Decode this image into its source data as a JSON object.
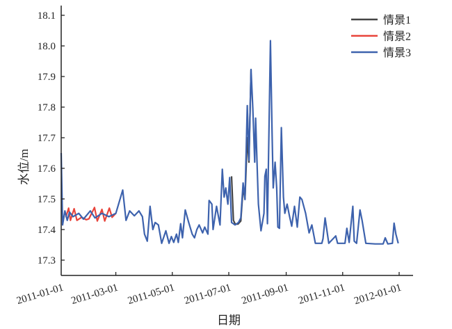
{
  "chart_data": {
    "type": "line",
    "title": "",
    "xlabel": "日期",
    "ylabel": "水位/m",
    "x_unit": "days since 2011-01-01",
    "xlim": [
      0,
      365
    ],
    "ylim": [
      17.3,
      18.1
    ],
    "yticks": [
      17.3,
      17.4,
      17.5,
      17.6,
      17.7,
      17.8,
      17.9,
      18.0,
      18.1
    ],
    "ytick_labels": [
      "17.3",
      "17.4",
      "17.5",
      "17.6",
      "17.7",
      "17.8",
      "17.9",
      "18.0",
      "18.1"
    ],
    "xticks": [
      0,
      59,
      120,
      181,
      243,
      304,
      365
    ],
    "xtick_labels": [
      "2011-01-01",
      "2011-03-01",
      "2011-05-01",
      "2011-07-01",
      "2011-09-01",
      "2011-11-01",
      "2012-01-01"
    ],
    "grid": false,
    "legend_position": "top-right",
    "series": [
      {
        "name": "情景1",
        "color": "#444444",
        "note": "differs from 情景3 only in segments listed",
        "points": [
          [
            184,
            17.574
          ],
          [
            186,
            17.43
          ],
          [
            188,
            17.418
          ],
          [
            191,
            17.418
          ],
          [
            194,
            17.428
          ],
          [
            196.5,
            17.536
          ],
          [
            198.5,
            17.5
          ],
          [
            201,
            17.7
          ],
          [
            202.75,
            17.62
          ],
          [
            205,
            17.923
          ]
        ]
      },
      {
        "name": "情景2",
        "color": "#e8453c",
        "note": "differs from 情景3 only in segments listed",
        "points": [
          [
            5,
            17.44
          ],
          [
            8,
            17.47
          ],
          [
            10,
            17.43
          ],
          [
            14,
            17.468
          ],
          [
            17,
            17.43
          ],
          [
            22,
            17.44
          ],
          [
            27,
            17.432
          ],
          [
            30,
            17.435
          ],
          [
            36,
            17.472
          ],
          [
            39,
            17.428
          ],
          [
            44,
            17.466
          ],
          [
            47,
            17.428
          ],
          [
            52,
            17.47
          ],
          [
            55,
            17.44
          ],
          [
            59,
            17.453
          ]
        ]
      },
      {
        "name": "情景3",
        "color": "#3d62ad",
        "points": [
          [
            0,
            17.65
          ],
          [
            1.5,
            17.415
          ],
          [
            4,
            17.461
          ],
          [
            6.5,
            17.43
          ],
          [
            9,
            17.457
          ],
          [
            12.75,
            17.442
          ],
          [
            19,
            17.453
          ],
          [
            24,
            17.434
          ],
          [
            31.5,
            17.461
          ],
          [
            36.5,
            17.438
          ],
          [
            44,
            17.453
          ],
          [
            51.5,
            17.442
          ],
          [
            59,
            17.453
          ],
          [
            66.5,
            17.529
          ],
          [
            70,
            17.43
          ],
          [
            74,
            17.461
          ],
          [
            79,
            17.445
          ],
          [
            84,
            17.461
          ],
          [
            87.75,
            17.442
          ],
          [
            90,
            17.385
          ],
          [
            93,
            17.362
          ],
          [
            96,
            17.476
          ],
          [
            99,
            17.4
          ],
          [
            101.5,
            17.423
          ],
          [
            105,
            17.415
          ],
          [
            108.5,
            17.355
          ],
          [
            113,
            17.396
          ],
          [
            116.5,
            17.355
          ],
          [
            119,
            17.377
          ],
          [
            121.5,
            17.358
          ],
          [
            124.5,
            17.385
          ],
          [
            126.5,
            17.358
          ],
          [
            129,
            17.419
          ],
          [
            131,
            17.373
          ],
          [
            134,
            17.464
          ],
          [
            137.75,
            17.423
          ],
          [
            141.5,
            17.385
          ],
          [
            144,
            17.373
          ],
          [
            146.5,
            17.4
          ],
          [
            149,
            17.415
          ],
          [
            152.75,
            17.389
          ],
          [
            155,
            17.408
          ],
          [
            158.5,
            17.385
          ],
          [
            159.75,
            17.495
          ],
          [
            162.75,
            17.483
          ],
          [
            164,
            17.4
          ],
          [
            167.75,
            17.476
          ],
          [
            171.5,
            17.415
          ],
          [
            174,
            17.597
          ],
          [
            176,
            17.506
          ],
          [
            177.75,
            17.536
          ],
          [
            180,
            17.483
          ],
          [
            182,
            17.57
          ],
          [
            184,
            17.423
          ],
          [
            187.75,
            17.415
          ],
          [
            191.5,
            17.423
          ],
          [
            194,
            17.438
          ],
          [
            196.5,
            17.552
          ],
          [
            198.5,
            17.498
          ],
          [
            201,
            17.805
          ],
          [
            202.75,
            17.627
          ],
          [
            205,
            17.923
          ],
          [
            207,
            17.794
          ],
          [
            209,
            17.62
          ],
          [
            210,
            17.764
          ],
          [
            211.5,
            17.62
          ],
          [
            213,
            17.483
          ],
          [
            215.75,
            17.396
          ],
          [
            219,
            17.453
          ],
          [
            220,
            17.574
          ],
          [
            221.5,
            17.597
          ],
          [
            222.75,
            17.419
          ],
          [
            226,
            18.017
          ],
          [
            227.75,
            17.711
          ],
          [
            229,
            17.536
          ],
          [
            231,
            17.62
          ],
          [
            232.75,
            17.536
          ],
          [
            234,
            17.408
          ],
          [
            235.75,
            17.404
          ],
          [
            237.75,
            17.733
          ],
          [
            240,
            17.506
          ],
          [
            241.5,
            17.453
          ],
          [
            244,
            17.483
          ],
          [
            246.5,
            17.445
          ],
          [
            249,
            17.411
          ],
          [
            252,
            17.476
          ],
          [
            255,
            17.408
          ],
          [
            257.75,
            17.506
          ],
          [
            260,
            17.498
          ],
          [
            264,
            17.453
          ],
          [
            267.75,
            17.389
          ],
          [
            270.75,
            17.415
          ],
          [
            274.5,
            17.355
          ],
          [
            281.5,
            17.355
          ],
          [
            282.75,
            17.37
          ],
          [
            285,
            17.438
          ],
          [
            289,
            17.355
          ],
          [
            296.5,
            17.379
          ],
          [
            298.5,
            17.355
          ],
          [
            306.5,
            17.355
          ],
          [
            308.5,
            17.404
          ],
          [
            311,
            17.358
          ],
          [
            315,
            17.476
          ],
          [
            316.5,
            17.362
          ],
          [
            319,
            17.355
          ],
          [
            322.75,
            17.464
          ],
          [
            325,
            17.43
          ],
          [
            329,
            17.355
          ],
          [
            339,
            17.353
          ],
          [
            347.75,
            17.353
          ],
          [
            350,
            17.373
          ],
          [
            352.75,
            17.353
          ],
          [
            357.75,
            17.355
          ],
          [
            359.5,
            17.421
          ],
          [
            361.5,
            17.385
          ],
          [
            364,
            17.355
          ]
        ]
      }
    ]
  }
}
